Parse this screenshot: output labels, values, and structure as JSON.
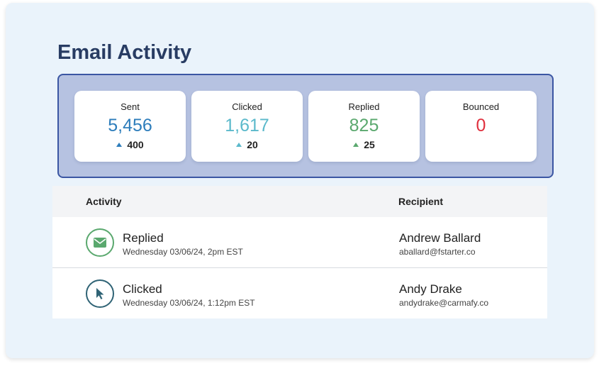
{
  "title": "Email Activity",
  "stats": [
    {
      "label": "Sent",
      "value": "5,456",
      "delta": "400",
      "value_color": "#2d7dbb",
      "arrow_color": "#2d7dbb"
    },
    {
      "label": "Clicked",
      "value": "1,617",
      "delta": "20",
      "value_color": "#5bb9cb",
      "arrow_color": "#5bb9cb"
    },
    {
      "label": "Replied",
      "value": "825",
      "delta": "25",
      "value_color": "#5aa86e",
      "arrow_color": "#5aa86e"
    },
    {
      "label": "Bounced",
      "value": "0",
      "delta": "",
      "value_color": "#e0303e",
      "arrow_color": ""
    }
  ],
  "table": {
    "headers": {
      "activity": "Activity",
      "recipient": "Recipient"
    },
    "rows": [
      {
        "icon": "envelope-icon",
        "icon_color": "#5aa86e",
        "activity": "Replied",
        "time": "Wednesday 03/06/24, 2pm EST",
        "recipient": "Andrew Ballard",
        "email": "aballard@fstarter.co"
      },
      {
        "icon": "cursor-icon",
        "icon_color": "#2f6375",
        "activity": "Clicked",
        "time": "Wednesday 03/06/24, 1:12pm EST",
        "recipient": "Andy Drake",
        "email": "andydrake@carmafy.co"
      }
    ]
  }
}
